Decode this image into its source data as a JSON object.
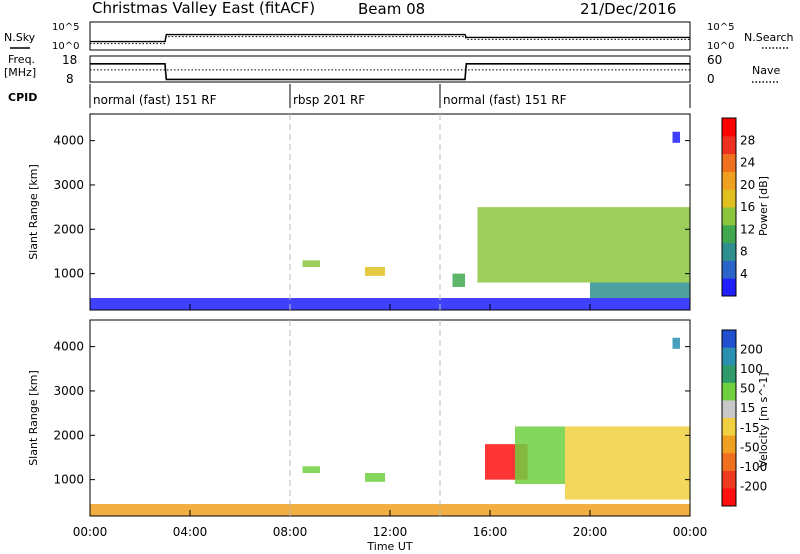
{
  "header": {
    "title": "Christmas Valley East (fitACF)",
    "beam": "Beam 08",
    "date": "21/Dec/2016"
  },
  "panels": {
    "nsky_label": "N.Sky",
    "nsky_ticks": [
      "10^5",
      "10^0"
    ],
    "nsearch_label": "N.Search",
    "nsearch_ticks": [
      "10^5",
      "10^0"
    ],
    "freq_label_1": "Freq.",
    "freq_label_2": "[MHz]",
    "freq_ticks": [
      "18",
      "8"
    ],
    "nave_label": "Nave",
    "nave_ticks": [
      "60",
      "0"
    ],
    "cpid_label": "CPID",
    "cpid_segments": [
      {
        "label": "normal (fast) 151 RF",
        "start_h": 0,
        "end_h": 8
      },
      {
        "label": "rbsp 201 RF",
        "start_h": 8,
        "end_h": 14
      },
      {
        "label": "normal (fast) 151 RF",
        "start_h": 14,
        "end_h": 24
      }
    ]
  },
  "axes": {
    "ylabel": "Slant Range [km]",
    "xlabel": "Time UT",
    "x_ticks": [
      "00:00",
      "04:00",
      "08:00",
      "12:00",
      "16:00",
      "20:00",
      "00:00"
    ],
    "x_tick_hours": [
      0,
      4,
      8,
      12,
      16,
      20,
      24
    ],
    "y_ticks": [
      1000,
      2000,
      3000,
      4000
    ],
    "x_range_h": [
      0,
      24
    ],
    "y_range_km": [
      180,
      4600
    ]
  },
  "power_colorbar": {
    "label": "Power [dB]",
    "ticks": [
      "4",
      "8",
      "12",
      "16",
      "20",
      "24",
      "28"
    ],
    "colors": [
      "#1f1fff",
      "#2a64c8",
      "#2f8f8f",
      "#3fa84f",
      "#8cc63f",
      "#e0c020",
      "#f0a020",
      "#f07020",
      "#ee3020",
      "#ff0000"
    ]
  },
  "velocity_colorbar": {
    "label": "Velocity [m s^-1]",
    "ticks": [
      "200",
      "100",
      "50",
      "15",
      "-15",
      "-50",
      "-100",
      "-200"
    ],
    "colors": [
      "#2050d0",
      "#2a8fb0",
      "#2f9a6a",
      "#6fcf3f",
      "#c8c8c8",
      "#f0d040",
      "#f0a020",
      "#f07020",
      "#ee3a20",
      "#ff1010"
    ]
  },
  "chart_data": [
    {
      "type": "line",
      "name": "N.Sky / N.Search",
      "x": [
        0,
        3,
        3.05,
        15,
        15.05,
        24
      ],
      "values": [
        0.3,
        0.3,
        0.55,
        0.55,
        0.45,
        0.45
      ]
    },
    {
      "type": "line",
      "name": "Freq. / Nave",
      "x_hours": [
        0,
        3,
        3.05,
        15,
        15.05,
        24
      ],
      "freq_mhz": [
        15,
        15,
        9,
        9,
        15,
        15
      ],
      "nave": [
        28,
        28,
        28,
        28,
        28,
        28
      ]
    },
    {
      "type": "heatmap",
      "name": "Power",
      "xlabel": "Time UT",
      "ylabel": "Slant Range [km]",
      "zlabel": "Power [dB]",
      "xlim_h": [
        0,
        24
      ],
      "ylim_km": [
        180,
        4600
      ],
      "regions": [
        {
          "t0": 0,
          "t1": 24,
          "r0": 180,
          "r1": 450,
          "value": 6
        },
        {
          "t0": 8.5,
          "t1": 9.2,
          "r0": 1150,
          "r1": 1300,
          "value": 14
        },
        {
          "t0": 11,
          "t1": 11.8,
          "r0": 950,
          "r1": 1150,
          "value": 18
        },
        {
          "t0": 14.5,
          "t1": 15,
          "r0": 700,
          "r1": 1000,
          "value": 12
        },
        {
          "t0": 15.5,
          "t1": 24,
          "r0": 800,
          "r1": 2500,
          "value": 14
        },
        {
          "t0": 20,
          "t1": 24,
          "r0": 450,
          "r1": 800,
          "value": 10
        },
        {
          "t0": 23.3,
          "t1": 23.6,
          "r0": 3950,
          "r1": 4200,
          "value": 6
        }
      ]
    },
    {
      "type": "heatmap",
      "name": "Velocity",
      "xlabel": "Time UT",
      "ylabel": "Slant Range [km]",
      "zlabel": "Velocity [m s^-1]",
      "xlim_h": [
        0,
        24
      ],
      "ylim_km": [
        180,
        4600
      ],
      "regions": [
        {
          "t0": 0,
          "t1": 24,
          "r0": 180,
          "r1": 450,
          "value": -50
        },
        {
          "t0": 15.8,
          "t1": 17.5,
          "r0": 1000,
          "r1": 1800,
          "value": -200
        },
        {
          "t0": 17,
          "t1": 19,
          "r0": 900,
          "r1": 2200,
          "value": 50
        },
        {
          "t0": 19,
          "t1": 24,
          "r0": 550,
          "r1": 2200,
          "value": 0
        },
        {
          "t0": 8.5,
          "t1": 9.2,
          "r0": 1150,
          "r1": 1300,
          "value": 50
        },
        {
          "t0": 11,
          "t1": 11.8,
          "r0": 950,
          "r1": 1150,
          "value": 50
        },
        {
          "t0": 23.3,
          "t1": 23.6,
          "r0": 3950,
          "r1": 4200,
          "value": 150
        }
      ]
    }
  ]
}
